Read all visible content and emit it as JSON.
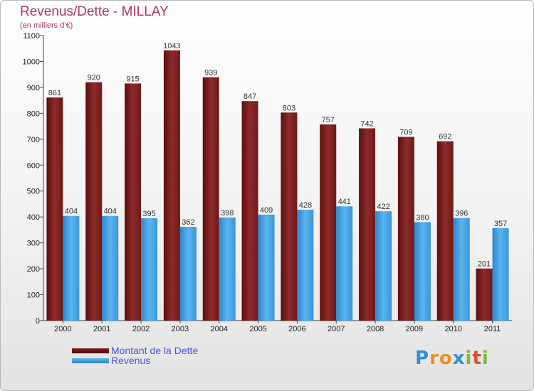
{
  "chart_data": {
    "type": "bar",
    "title": "Revenus/Dette - MILLAY",
    "subtitle": "(en milliers d'€)",
    "categories": [
      "2000",
      "2001",
      "2002",
      "2003",
      "2004",
      "2005",
      "2006",
      "2007",
      "2008",
      "2009",
      "2010",
      "2011"
    ],
    "series": [
      {
        "name": "Montant de la Dette",
        "color": "#7d1e1e",
        "values": [
          861,
          920,
          915,
          1043,
          939,
          847,
          803,
          757,
          742,
          709,
          692,
          201
        ]
      },
      {
        "name": "Revenus",
        "color": "#3c9be0",
        "values": [
          404,
          404,
          395,
          362,
          398,
          409,
          428,
          441,
          422,
          380,
          396,
          357
        ]
      }
    ],
    "ylim": [
      0,
      1100
    ],
    "yticks": [
      0,
      100,
      200,
      300,
      400,
      500,
      600,
      700,
      800,
      900,
      1000,
      1100
    ],
    "grid": false,
    "legend": "bottom-left"
  },
  "logo": {
    "text": "Proxiti",
    "letters": [
      {
        "ch": "P",
        "color": "#2f8fd6"
      },
      {
        "ch": "r",
        "color": "#e8902a"
      },
      {
        "ch": "o",
        "color": "#e8902a"
      },
      {
        "ch": "x",
        "color": "#2f8fd6"
      },
      {
        "ch": "i",
        "color": "#7cbb32"
      },
      {
        "ch": "t",
        "color": "#e04a3a"
      },
      {
        "ch": "i",
        "color": "#7cbb32"
      }
    ]
  }
}
